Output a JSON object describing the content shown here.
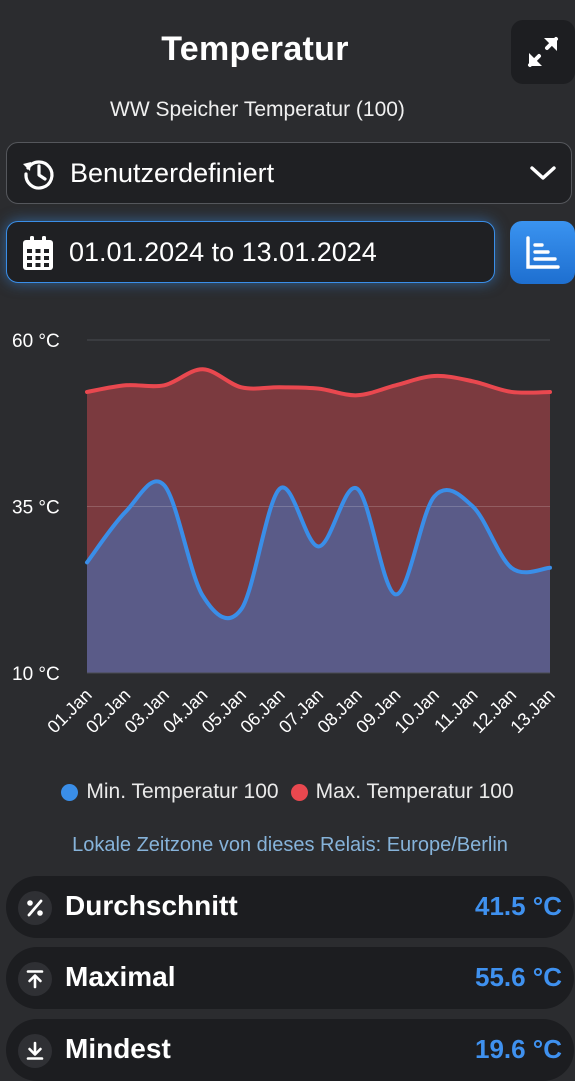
{
  "header": {
    "title": "Temperatur",
    "subtitle": "WW Speicher Temperatur (100)"
  },
  "icons": {
    "expand": "expand-icon",
    "history": "history-icon",
    "chevron": "chevron-down-icon",
    "calendar": "calendar-icon",
    "chart": "chart-icon"
  },
  "range_select": {
    "selected": "Benutzerdefiniert"
  },
  "date_range": {
    "value": "01.01.2024 to 13.01.2024"
  },
  "chart_data": {
    "type": "area",
    "x": [
      "01.Jan",
      "02.Jan",
      "03.Jan",
      "04.Jan",
      "05.Jan",
      "06.Jan",
      "07.Jan",
      "08.Jan",
      "09.Jan",
      "10.Jan",
      "11.Jan",
      "12.Jan",
      "13.Jan"
    ],
    "y_ticks": [
      "60 °C",
      "35 °C",
      "10 °C"
    ],
    "ylim": [
      10,
      60
    ],
    "series": [
      {
        "name": "Min. Temperatur 100",
        "color": "#3a8ee8",
        "values": [
          26.6,
          34.2,
          38.2,
          21.6,
          19.6,
          37.7,
          29.0,
          37.7,
          21.8,
          36.5,
          35.0,
          25.8,
          25.8
        ]
      },
      {
        "name": "Max. Temperatur 100",
        "color": "#e9484f",
        "values": [
          52.2,
          53.2,
          53.2,
          55.6,
          52.9,
          52.9,
          52.7,
          51.7,
          53.2,
          54.6,
          53.8,
          52.2,
          52.2
        ]
      }
    ],
    "grid": true,
    "legend": "bottom"
  },
  "legend": {
    "min_label": "Min. Temperatur 100",
    "max_label": "Max. Temperatur 100",
    "min_color": "#3a8ee8",
    "max_color": "#e9484f"
  },
  "timezone_note": "Lokale Zeitzone von dieses Relais: Europe/Berlin",
  "stats": {
    "average": {
      "label": "Durchschnitt",
      "value": "41.5 °C",
      "icon": "percent-icon"
    },
    "max": {
      "label": "Maximal",
      "value": "55.6 °C",
      "icon": "arrow-up-to-line-icon"
    },
    "min": {
      "label": "Mindest",
      "value": "19.6 °C",
      "icon": "arrow-down-to-line-icon"
    }
  }
}
